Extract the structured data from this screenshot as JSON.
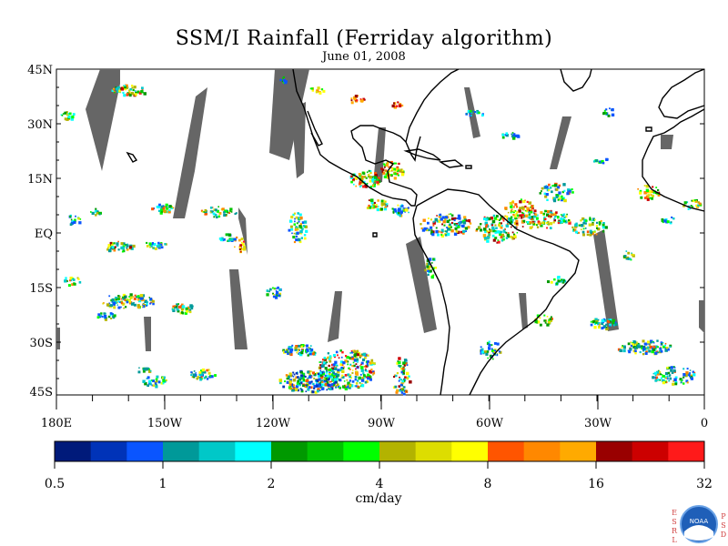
{
  "title": "SSM/I Rainfall (Ferriday algorithm)",
  "subtitle": "June 01, 2008",
  "lat_labels": [
    "45N",
    "30N",
    "15N",
    "EQ",
    "15S",
    "30S",
    "45S"
  ],
  "lon_labels": [
    "180E",
    "150W",
    "120W",
    "90W",
    "60W",
    "30W",
    "0"
  ],
  "colorbar": {
    "colors": [
      "#001a7a",
      "#0033b8",
      "#0a55ff",
      "#009999",
      "#00c8c8",
      "#00ffff",
      "#009900",
      "#00c200",
      "#00ff00",
      "#b3b300",
      "#dddd00",
      "#ffff00",
      "#ff5500",
      "#ff8800",
      "#ffaa00",
      "#990000",
      "#cc0000",
      "#ff1a1a"
    ],
    "tick_labels": [
      "0.5",
      "1",
      "2",
      "4",
      "8",
      "16",
      "32"
    ],
    "unit_label": "cm/day"
  },
  "logo": {
    "left_letters": [
      "E",
      "S",
      "R",
      "L"
    ],
    "right_letters": [
      "P",
      "S",
      "D"
    ],
    "emblem_text": "NOAA"
  },
  "colors": {
    "land": "#000000",
    "swath_gap": "#666666",
    "background": "#ffffff"
  }
}
